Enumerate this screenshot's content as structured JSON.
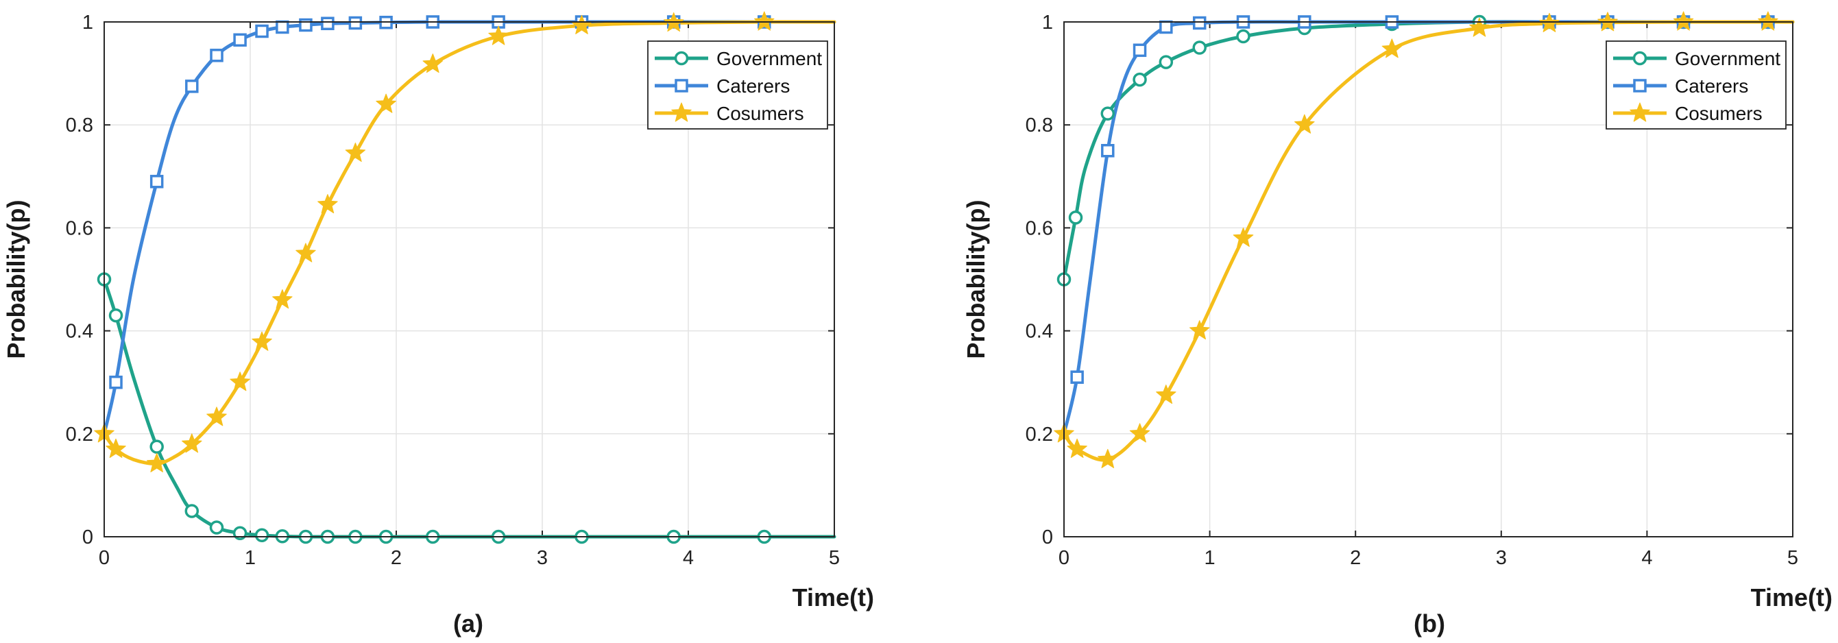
{
  "chart_data": [
    {
      "type": "line",
      "panel_label": "(a)",
      "xlabel": "Time(t)",
      "ylabel": "Probability(p)",
      "xlim": [
        0,
        5
      ],
      "ylim": [
        0,
        1
      ],
      "xticks": [
        "0",
        "1",
        "2",
        "3",
        "4",
        "5"
      ],
      "yticks": [
        "0",
        "0.2",
        "0.4",
        "0.6",
        "0.8",
        "1"
      ],
      "grid": true,
      "legend_position": "top-right",
      "series": [
        {
          "name": "Government",
          "color": "#1fa38a",
          "marker": "circle",
          "points": [
            [
              0,
              0.5
            ],
            [
              0.08,
              0.43
            ],
            [
              0.2,
              0.31
            ],
            [
              0.36,
              0.175
            ],
            [
              0.5,
              0.095
            ],
            [
              0.6,
              0.05
            ],
            [
              0.77,
              0.018
            ],
            [
              0.93,
              0.007
            ],
            [
              1.08,
              0.003
            ],
            [
              1.22,
              0.001
            ],
            [
              1.38,
              0
            ],
            [
              1.53,
              0
            ],
            [
              1.72,
              0
            ],
            [
              1.93,
              0
            ],
            [
              2.25,
              0
            ],
            [
              2.7,
              0
            ],
            [
              3.27,
              0
            ],
            [
              3.9,
              0
            ],
            [
              4.52,
              0
            ],
            [
              5,
              0
            ]
          ],
          "marker_points": [
            [
              0,
              0.5
            ],
            [
              0.08,
              0.43
            ],
            [
              0.36,
              0.175
            ],
            [
              0.6,
              0.05
            ],
            [
              0.77,
              0.018
            ],
            [
              0.93,
              0.007
            ],
            [
              1.08,
              0.003
            ],
            [
              1.22,
              0.001
            ],
            [
              1.38,
              0
            ],
            [
              1.53,
              0
            ],
            [
              1.72,
              0
            ],
            [
              1.93,
              0
            ],
            [
              2.25,
              0
            ],
            [
              2.7,
              0
            ],
            [
              3.27,
              0
            ],
            [
              3.9,
              0
            ],
            [
              4.52,
              0
            ]
          ]
        },
        {
          "name": "Caterers",
          "color": "#3f86d9",
          "marker": "square",
          "points": [
            [
              0,
              0.2
            ],
            [
              0.08,
              0.3
            ],
            [
              0.2,
              0.5
            ],
            [
              0.36,
              0.69
            ],
            [
              0.48,
              0.81
            ],
            [
              0.6,
              0.875
            ],
            [
              0.77,
              0.935
            ],
            [
              0.93,
              0.965
            ],
            [
              1.08,
              0.982
            ],
            [
              1.22,
              0.99
            ],
            [
              1.38,
              0.994
            ],
            [
              1.53,
              0.997
            ],
            [
              1.72,
              0.998
            ],
            [
              1.93,
              0.999
            ],
            [
              2.25,
              1
            ],
            [
              2.7,
              1
            ],
            [
              3.27,
              1
            ],
            [
              3.9,
              1
            ],
            [
              4.52,
              1
            ],
            [
              5,
              1
            ]
          ],
          "marker_points": [
            [
              0.08,
              0.3
            ],
            [
              0.36,
              0.69
            ],
            [
              0.6,
              0.875
            ],
            [
              0.77,
              0.935
            ],
            [
              0.93,
              0.965
            ],
            [
              1.08,
              0.982
            ],
            [
              1.22,
              0.99
            ],
            [
              1.38,
              0.994
            ],
            [
              1.53,
              0.997
            ],
            [
              1.72,
              0.998
            ],
            [
              1.93,
              0.999
            ],
            [
              2.25,
              1
            ],
            [
              2.7,
              1
            ],
            [
              3.27,
              1
            ],
            [
              3.9,
              1
            ],
            [
              4.52,
              1
            ]
          ]
        },
        {
          "name": "Cosumers",
          "color": "#f5be1a",
          "marker": "star",
          "points": [
            [
              0,
              0.2
            ],
            [
              0.08,
              0.17
            ],
            [
              0.2,
              0.15
            ],
            [
              0.36,
              0.142
            ],
            [
              0.48,
              0.155
            ],
            [
              0.6,
              0.18
            ],
            [
              0.77,
              0.232
            ],
            [
              0.93,
              0.3
            ],
            [
              1.08,
              0.378
            ],
            [
              1.22,
              0.46
            ],
            [
              1.38,
              0.55
            ],
            [
              1.53,
              0.645
            ],
            [
              1.72,
              0.745
            ],
            [
              1.93,
              0.84
            ],
            [
              2.25,
              0.918
            ],
            [
              2.7,
              0.972
            ],
            [
              3.27,
              0.993
            ],
            [
              3.9,
              0.998
            ],
            [
              4.52,
              1
            ],
            [
              5,
              1
            ]
          ],
          "marker_points": [
            [
              0,
              0.2
            ],
            [
              0.08,
              0.17
            ],
            [
              0.36,
              0.142
            ],
            [
              0.6,
              0.18
            ],
            [
              0.77,
              0.232
            ],
            [
              0.93,
              0.3
            ],
            [
              1.08,
              0.378
            ],
            [
              1.22,
              0.46
            ],
            [
              1.38,
              0.55
            ],
            [
              1.53,
              0.645
            ],
            [
              1.72,
              0.745
            ],
            [
              1.93,
              0.84
            ],
            [
              2.25,
              0.918
            ],
            [
              2.7,
              0.972
            ],
            [
              3.27,
              0.993
            ],
            [
              3.9,
              0.998
            ],
            [
              4.52,
              1
            ]
          ]
        }
      ]
    },
    {
      "type": "line",
      "panel_label": "(b)",
      "xlabel": "Time(t)",
      "ylabel": "Probability(p)",
      "xlim": [
        0,
        5
      ],
      "ylim": [
        0,
        1
      ],
      "xticks": [
        "0",
        "1",
        "2",
        "3",
        "4",
        "5"
      ],
      "yticks": [
        "0",
        "0.2",
        "0.4",
        "0.6",
        "0.8",
        "1"
      ],
      "grid": true,
      "legend_position": "top-right",
      "series": [
        {
          "name": "Government",
          "color": "#1fa38a",
          "marker": "circle",
          "points": [
            [
              0,
              0.5
            ],
            [
              0.08,
              0.62
            ],
            [
              0.15,
              0.72
            ],
            [
              0.3,
              0.822
            ],
            [
              0.52,
              0.888
            ],
            [
              0.7,
              0.922
            ],
            [
              0.93,
              0.95
            ],
            [
              1.23,
              0.972
            ],
            [
              1.65,
              0.988
            ],
            [
              2.25,
              0.996
            ],
            [
              2.85,
              1
            ],
            [
              3.33,
              1
            ],
            [
              3.73,
              1
            ],
            [
              4.25,
              1
            ],
            [
              4.83,
              1
            ],
            [
              5,
              1
            ]
          ],
          "marker_points": [
            [
              0,
              0.5
            ],
            [
              0.08,
              0.62
            ],
            [
              0.3,
              0.822
            ],
            [
              0.52,
              0.888
            ],
            [
              0.7,
              0.922
            ],
            [
              0.93,
              0.95
            ],
            [
              1.23,
              0.972
            ],
            [
              1.65,
              0.988
            ],
            [
              2.25,
              0.996
            ],
            [
              2.85,
              1
            ],
            [
              3.33,
              1
            ],
            [
              3.73,
              1
            ],
            [
              4.25,
              1
            ],
            [
              4.83,
              1
            ]
          ]
        },
        {
          "name": "Caterers",
          "color": "#3f86d9",
          "marker": "square",
          "points": [
            [
              0,
              0.2
            ],
            [
              0.09,
              0.31
            ],
            [
              0.18,
              0.5
            ],
            [
              0.3,
              0.75
            ],
            [
              0.4,
              0.875
            ],
            [
              0.52,
              0.945
            ],
            [
              0.7,
              0.99
            ],
            [
              0.93,
              0.998
            ],
            [
              1.23,
              1
            ],
            [
              1.65,
              1
            ],
            [
              2.25,
              1
            ],
            [
              3.33,
              1
            ],
            [
              3.73,
              1
            ],
            [
              4.25,
              1
            ],
            [
              4.83,
              1
            ],
            [
              5,
              1
            ]
          ],
          "marker_points": [
            [
              0.09,
              0.31
            ],
            [
              0.3,
              0.75
            ],
            [
              0.52,
              0.945
            ],
            [
              0.7,
              0.99
            ],
            [
              0.93,
              0.998
            ],
            [
              1.23,
              1
            ],
            [
              1.65,
              1
            ],
            [
              2.25,
              1
            ],
            [
              3.33,
              1
            ],
            [
              3.73,
              1
            ],
            [
              4.25,
              1
            ],
            [
              4.83,
              1
            ]
          ]
        },
        {
          "name": "Cosumers",
          "color": "#f5be1a",
          "marker": "star",
          "points": [
            [
              0,
              0.2
            ],
            [
              0.09,
              0.17
            ],
            [
              0.3,
              0.15
            ],
            [
              0.52,
              0.2
            ],
            [
              0.7,
              0.275
            ],
            [
              0.93,
              0.4
            ],
            [
              1.23,
              0.58
            ],
            [
              1.65,
              0.8
            ],
            [
              2.25,
              0.947
            ],
            [
              2.85,
              0.988
            ],
            [
              3.33,
              0.997
            ],
            [
              3.73,
              0.999
            ],
            [
              4.25,
              1
            ],
            [
              4.83,
              1
            ],
            [
              5,
              1
            ]
          ],
          "marker_points": [
            [
              0,
              0.2
            ],
            [
              0.09,
              0.17
            ],
            [
              0.3,
              0.15
            ],
            [
              0.52,
              0.2
            ],
            [
              0.7,
              0.275
            ],
            [
              0.93,
              0.4
            ],
            [
              1.23,
              0.58
            ],
            [
              1.65,
              0.8
            ],
            [
              2.25,
              0.947
            ],
            [
              2.85,
              0.988
            ],
            [
              3.33,
              0.997
            ],
            [
              3.73,
              0.999
            ],
            [
              4.25,
              1
            ],
            [
              4.83,
              1
            ]
          ]
        }
      ]
    }
  ]
}
